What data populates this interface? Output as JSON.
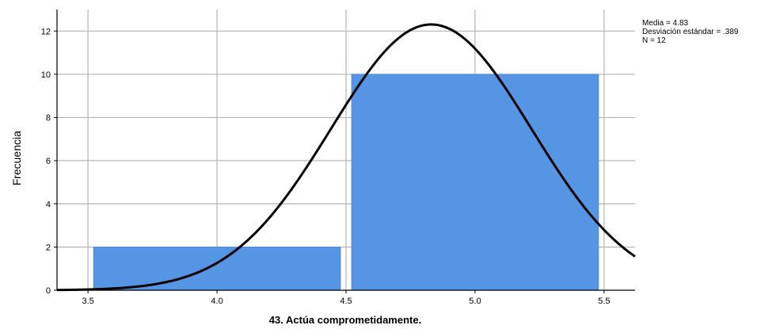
{
  "chart_data": {
    "type": "bar",
    "title": "",
    "xlabel": "43. Actúa comprometidamente.",
    "ylabel": "Frecuencia",
    "xlim": [
      3.38,
      5.62
    ],
    "ylim": [
      0,
      13
    ],
    "x_ticks": [
      "3.5",
      "4.0",
      "4.5",
      "5.0",
      "5.5"
    ],
    "y_ticks": [
      "0",
      "2",
      "4",
      "6",
      "8",
      "10",
      "12"
    ],
    "bins": [
      {
        "start": 3.5,
        "end": 4.5,
        "value": 2
      },
      {
        "start": 4.5,
        "end": 5.5,
        "value": 10
      }
    ],
    "bar_color": "#5595e3",
    "curve": {
      "type": "normal",
      "mean": 4.83,
      "sd": 0.389,
      "n": 12,
      "bin_width": 1,
      "color": "#000000"
    },
    "grid": true,
    "stats": {
      "mean_label": "Media = 4.83",
      "sd_label": "Desviación estándar = .389",
      "n_label": "N = 12"
    }
  }
}
